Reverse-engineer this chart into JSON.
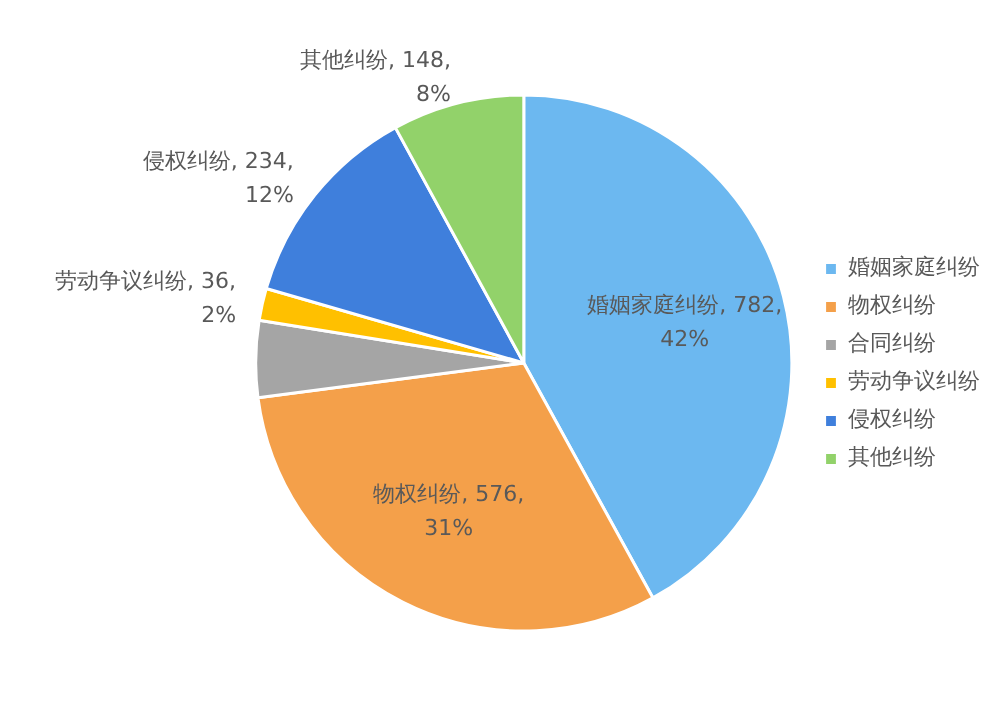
{
  "chart_data": {
    "type": "pie",
    "categories": [
      "婚姻家庭纠纷",
      "物权纠纷",
      "合同纠纷",
      "劳动争议纠纷",
      "侵权纠纷",
      "其他纠纷"
    ],
    "values": [
      782,
      576,
      86,
      36,
      234,
      148
    ],
    "colors": [
      "#6cb8f0",
      "#f4a04a",
      "#a5a5a5",
      "#ffc000",
      "#3f7fdc",
      "#92d26a"
    ],
    "value_labels": [
      "婚姻家庭纠纷, 782, 42%",
      "物权纠纷, 576, 31%",
      null,
      "劳动争议纠纷, 36, 2%",
      "侵权纠纷, 234, 12%",
      "其他纠纷, 148, 8%"
    ],
    "legend": "right"
  }
}
